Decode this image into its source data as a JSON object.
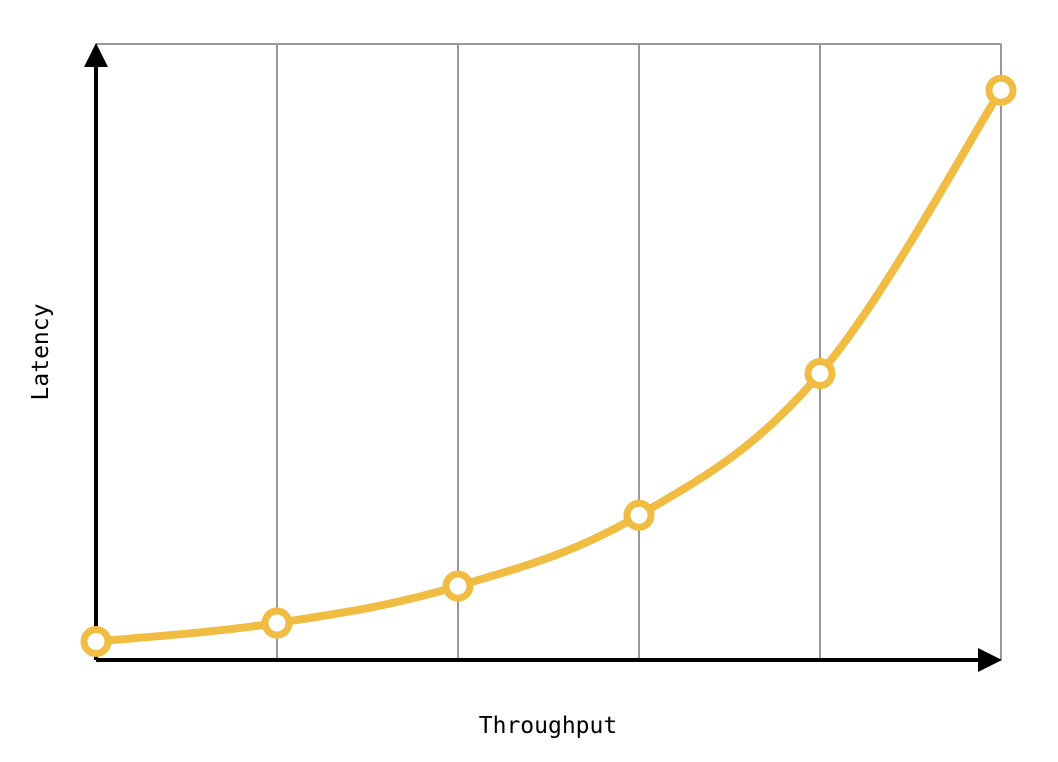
{
  "chart_data": {
    "type": "line",
    "title": "",
    "xlabel": "Throughput",
    "ylabel": "Latency",
    "x": [
      0,
      1,
      2,
      3,
      4,
      5
    ],
    "xlim": [
      0,
      5
    ],
    "ylim": [
      0,
      100
    ],
    "grid": "vertical",
    "series": [
      {
        "values": [
          3,
          6,
          12,
          23.5,
          46.5,
          92.5
        ],
        "color": "#F0BC42"
      }
    ]
  },
  "colors": {
    "line": "#F0BC42",
    "marker_fill": "#ffffff",
    "grid": "#999999",
    "axis": "#000000"
  }
}
